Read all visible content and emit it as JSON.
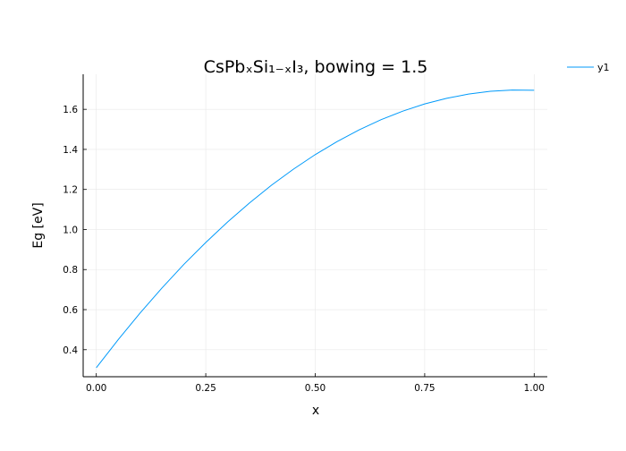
{
  "chart_data": {
    "type": "line",
    "title": "CsPbₓSi₁₋ₓI₃, bowing = 1.5",
    "xlabel": "x",
    "ylabel": "Eg [eV]",
    "xlim": [
      -0.03,
      1.03
    ],
    "ylim": [
      0.265,
      1.775
    ],
    "xticks": [
      0.0,
      0.25,
      0.5,
      0.75,
      1.0
    ],
    "xtick_labels": [
      "0.00",
      "0.25",
      "0.50",
      "0.75",
      "1.00"
    ],
    "yticks": [
      0.4,
      0.6,
      0.8,
      1.0,
      1.2,
      1.4,
      1.6
    ],
    "ytick_labels": [
      "0.4",
      "0.6",
      "0.8",
      "1.0",
      "1.2",
      "1.4",
      "1.6"
    ],
    "grid": true,
    "legend": "outside-top-right",
    "series": [
      {
        "name": "y1",
        "color": "#009AFA",
        "x": [
          0.0,
          0.05,
          0.1,
          0.15,
          0.2,
          0.25,
          0.3,
          0.35,
          0.4,
          0.45,
          0.5,
          0.55,
          0.6,
          0.65,
          0.7,
          0.75,
          0.8,
          0.85,
          0.9,
          0.95,
          1.0
        ],
        "y": [
          0.31,
          0.45,
          0.583,
          0.708,
          0.826,
          0.935,
          1.038,
          1.133,
          1.221,
          1.301,
          1.374,
          1.439,
          1.497,
          1.548,
          1.591,
          1.627,
          1.655,
          1.676,
          1.69,
          1.696,
          1.695
        ]
      }
    ]
  }
}
